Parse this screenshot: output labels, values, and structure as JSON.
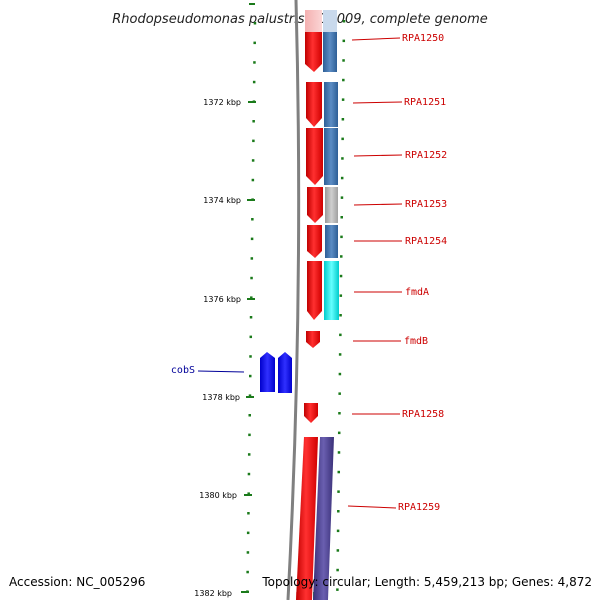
{
  "title": "Rhodopseudomonas palustris CGA009, complete genome",
  "footer": {
    "accession": "Accession: NC_005296",
    "stats": "Topology: circular; Length: 5,459,213 bp; Genes: 4,872"
  },
  "scale": {
    "unit": "kbp",
    "major_ticks": [
      {
        "label": "1372 kbp"
      },
      {
        "label": "1374 kbp"
      },
      {
        "label": "1376 kbp"
      },
      {
        "label": "1378 kbp"
      },
      {
        "label": "1380 kbp"
      },
      {
        "label": "1382 kbp"
      }
    ]
  },
  "colors": {
    "forward_cds": "#ff1a1a",
    "label_forward": "#cc0000",
    "label_reverse": "#000099",
    "backbone": "#808080",
    "tick": "#1a7a1a",
    "reverse_cds": "#0a0aee",
    "cog_blue": "#3f73ac",
    "cog_grey": "#b5b5b5",
    "cog_cyan": "#00e5e5",
    "cog_purple": "#4a3f8c"
  },
  "genes": [
    {
      "label": "RPA1250",
      "strand": "forward"
    },
    {
      "label": "RPA1251",
      "strand": "forward"
    },
    {
      "label": "RPA1252",
      "strand": "forward"
    },
    {
      "label": "RPA1253",
      "strand": "forward"
    },
    {
      "label": "RPA1254",
      "strand": "forward"
    },
    {
      "label": "fmdA",
      "strand": "forward"
    },
    {
      "label": "fmdB",
      "strand": "forward"
    },
    {
      "label": "cobS",
      "strand": "reverse"
    },
    {
      "label": "RPA1258",
      "strand": "forward"
    },
    {
      "label": "RPA1259",
      "strand": "forward"
    }
  ]
}
